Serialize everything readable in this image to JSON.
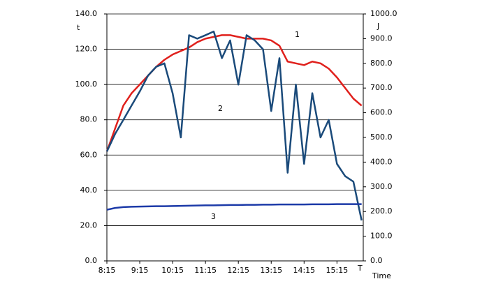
{
  "chart_data": {
    "type": "line",
    "y_label": "t",
    "y2_label": "J",
    "x_label": "T",
    "x_label2": "Time",
    "annotations": [
      "1",
      "2",
      "3"
    ],
    "x": [
      8.25,
      8.5,
      8.75,
      9.0,
      9.25,
      9.5,
      9.75,
      10.0,
      10.25,
      10.5,
      10.75,
      11.0,
      11.25,
      11.5,
      11.75,
      12.0,
      12.25,
      12.5,
      12.75,
      13.0,
      13.25,
      13.5,
      13.75,
      14.0,
      14.25,
      14.5,
      14.75,
      15.0,
      15.25,
      15.5,
      15.75,
      16.0
    ],
    "xlim": [
      8.25,
      16.05
    ],
    "xticks": [
      {
        "value": 8.25,
        "label": "8:15"
      },
      {
        "value": 9.25,
        "label": "9:15"
      },
      {
        "value": 10.25,
        "label": "10:15"
      },
      {
        "value": 11.25,
        "label": "11:15"
      },
      {
        "value": 12.25,
        "label": "12:15"
      },
      {
        "value": 13.25,
        "label": "13:15"
      },
      {
        "value": 14.25,
        "label": "14:15"
      },
      {
        "value": 15.25,
        "label": "15:15"
      }
    ],
    "ylim": [
      0,
      140
    ],
    "yticks": [
      {
        "value": 0,
        "label": "0.0"
      },
      {
        "value": 20,
        "label": "20.0"
      },
      {
        "value": 40,
        "label": "40.0"
      },
      {
        "value": 60,
        "label": "60.0"
      },
      {
        "value": 80,
        "label": "80.0"
      },
      {
        "value": 100,
        "label": "100.0"
      },
      {
        "value": 120,
        "label": "120.0"
      },
      {
        "value": 140,
        "label": "140.0"
      }
    ],
    "y2lim": [
      0,
      1000
    ],
    "y2ticks": [
      {
        "value": 0,
        "label": "0.0"
      },
      {
        "value": 100,
        "label": "100.0"
      },
      {
        "value": 200,
        "label": "200.0"
      },
      {
        "value": 300,
        "label": "300.0"
      },
      {
        "value": 400,
        "label": "400.0"
      },
      {
        "value": 500,
        "label": "500.0"
      },
      {
        "value": 600,
        "label": "600.0"
      },
      {
        "value": 700,
        "label": "700.0"
      },
      {
        "value": 800,
        "label": "800.0"
      },
      {
        "value": 900,
        "label": "900.0"
      },
      {
        "value": 1000,
        "label": "1000.0"
      }
    ],
    "grid": true,
    "series": [
      {
        "color": "#e0201c",
        "values": [
          62,
          75,
          88,
          95,
          100,
          105,
          110,
          114,
          117,
          119,
          121,
          124,
          126,
          127,
          128,
          128,
          127,
          126,
          126,
          126,
          125,
          122,
          113,
          112,
          111,
          113,
          112,
          109,
          104,
          98,
          92,
          88
        ]
      },
      {
        "color": "#1a4a7a",
        "axis": "y2",
        "values": [
          443,
          514,
          571,
          629,
          686,
          750,
          786,
          800,
          679,
          500,
          914,
          900,
          914,
          929,
          821,
          893,
          714,
          914,
          893,
          857,
          607,
          821,
          357,
          714,
          393,
          679,
          500,
          571,
          393,
          343,
          321,
          164
        ]
      },
      {
        "color": "#1c3aa8",
        "values": [
          29,
          30,
          30.5,
          30.7,
          30.8,
          30.9,
          31,
          31,
          31.1,
          31.2,
          31.3,
          31.4,
          31.5,
          31.5,
          31.6,
          31.7,
          31.7,
          31.8,
          31.8,
          31.9,
          31.9,
          32,
          32,
          32,
          32,
          32.1,
          32.1,
          32.1,
          32.2,
          32.2,
          32.2,
          32.2
        ]
      }
    ]
  }
}
